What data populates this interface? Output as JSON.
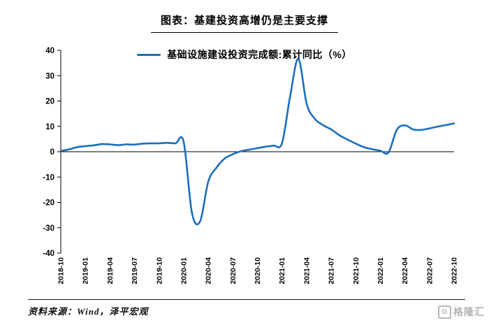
{
  "title": "图表：基建投资高增仍是主要支撑",
  "legend": "基础设施建设投资完成额:累计同比（%）",
  "source": "资料来源：Wind，泽平宏观",
  "watermark": {
    "logo_letter": "G",
    "text": "格隆汇"
  },
  "colors": {
    "line": "#1a6ebe",
    "axis": "#000000",
    "tick_text": "#000000"
  },
  "chart_data": {
    "type": "line",
    "title": "图表：基建投资高增仍是主要支撑",
    "series_name": "基础设施建设投资完成额:累计同比（%）",
    "ylabel": "",
    "xlabel": "",
    "ylim": [
      -40,
      40
    ],
    "y_ticks": [
      40,
      30,
      20,
      10,
      0,
      -10,
      -20,
      -30,
      -40
    ],
    "grid": false,
    "legend_position": "top-center",
    "x_tick_labels": [
      "2018-10",
      "2019-01",
      "2019-04",
      "2019-07",
      "2019-10",
      "2020-01",
      "2020-04",
      "2020-07",
      "2020-10",
      "2021-01",
      "2021-04",
      "2021-07",
      "2021-10",
      "2022-01",
      "2022-04",
      "2022-07",
      "2022-10"
    ],
    "x": [
      "2018-10",
      "2018-11",
      "2018-12",
      "2019-01",
      "2019-02",
      "2019-03",
      "2019-04",
      "2019-05",
      "2019-06",
      "2019-07",
      "2019-08",
      "2019-09",
      "2019-10",
      "2019-11",
      "2019-12",
      "2020-01",
      "2020-02",
      "2020-03",
      "2020-04",
      "2020-05",
      "2020-06",
      "2020-07",
      "2020-08",
      "2020-09",
      "2020-10",
      "2020-11",
      "2020-12",
      "2021-01",
      "2021-02",
      "2021-03",
      "2021-04",
      "2021-05",
      "2021-06",
      "2021-07",
      "2021-08",
      "2021-09",
      "2021-10",
      "2021-11",
      "2021-12",
      "2022-01",
      "2022-02",
      "2022-03",
      "2022-04",
      "2022-05",
      "2022-06",
      "2022-07",
      "2022-08",
      "2022-09",
      "2022-10"
    ],
    "values": [
      0.3,
      0.9,
      1.8,
      2.2,
      2.5,
      3.0,
      2.9,
      2.6,
      2.9,
      2.8,
      3.2,
      3.3,
      3.3,
      3.5,
      3.3,
      3.9,
      -24.0,
      -27.5,
      -11.8,
      -6.3,
      -2.7,
      -1.0,
      0.2,
      0.8,
      1.4,
      2.0,
      2.4,
      3.4,
      22.0,
      36.6,
      19.0,
      13.0,
      10.5,
      8.8,
      6.5,
      4.8,
      3.2,
      1.8,
      1.0,
      0.4,
      -0.3,
      8.6,
      10.4,
      8.8,
      8.6,
      9.2,
      9.9,
      10.5,
      11.2
    ]
  }
}
